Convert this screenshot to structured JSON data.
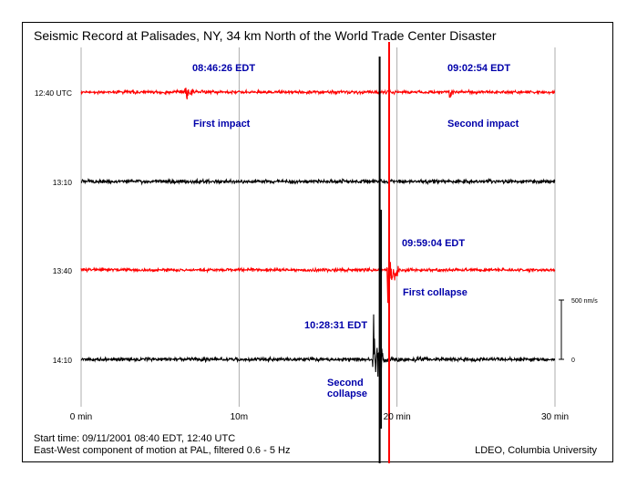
{
  "header": {
    "title": "Seismic Record at Palisades, NY, 34 km North of the World Trade Center Disaster"
  },
  "footer": {
    "start_time": "Start time: 09/11/2001 08:40 EDT, 12:40 UTC",
    "component": "East-West component of motion at PAL, filtered 0.6 - 5 Hz",
    "credit": "LDEO, Columbia University"
  },
  "colors": {
    "red": "#ff0000",
    "black": "#000000",
    "annotation": "#0000aa",
    "grid": "#999999"
  },
  "chart_data": {
    "type": "line",
    "title": "Seismic Record at Palisades, NY, 34 km North of the World Trade Center Disaster",
    "xlabel": "",
    "ylabel": "",
    "xlim": [
      0,
      30
    ],
    "x_ticks": [
      {
        "value": 0,
        "label": "0 min"
      },
      {
        "value": 10,
        "label": "10m"
      },
      {
        "value": 20,
        "label": "20 min"
      },
      {
        "value": 30,
        "label": "30 min"
      }
    ],
    "grid": "vertical",
    "scale_bar": {
      "top_label": "500 nm/s",
      "bottom_label": "0",
      "value": 500
    },
    "traces": [
      {
        "label": "12:40 UTC",
        "color": "#ff0000",
        "noise_nm_s": 25,
        "events": [
          {
            "time_min": 6.6,
            "amplitude_nm_s": 220,
            "duration_min": 0.5
          },
          {
            "time_min": 23.3,
            "amplitude_nm_s": 120,
            "duration_min": 0.3
          }
        ]
      },
      {
        "label": "13:10",
        "color": "#000000",
        "noise_nm_s": 30,
        "events": []
      },
      {
        "label": "13:40",
        "color": "#ff0000",
        "noise_nm_s": 25,
        "events": [
          {
            "time_min": 19.4,
            "amplitude_nm_s": 650,
            "duration_min": 0.8
          }
        ]
      },
      {
        "label": "14:10",
        "color": "#000000",
        "noise_nm_s": 30,
        "events": [
          {
            "time_min": 18.5,
            "amplitude_nm_s": 900,
            "duration_min": 0.9
          }
        ]
      }
    ],
    "annotations": [
      {
        "time": "08:46:26 EDT",
        "label": "First impact",
        "trace": 0
      },
      {
        "time": "09:02:54 EDT",
        "label": "Second impact",
        "trace": 0
      },
      {
        "time": "09:59:04 EDT",
        "label": "First collapse",
        "trace": 2
      },
      {
        "time": "10:28:31 EDT",
        "label": "Second\ncollapse",
        "trace": 3
      }
    ]
  }
}
